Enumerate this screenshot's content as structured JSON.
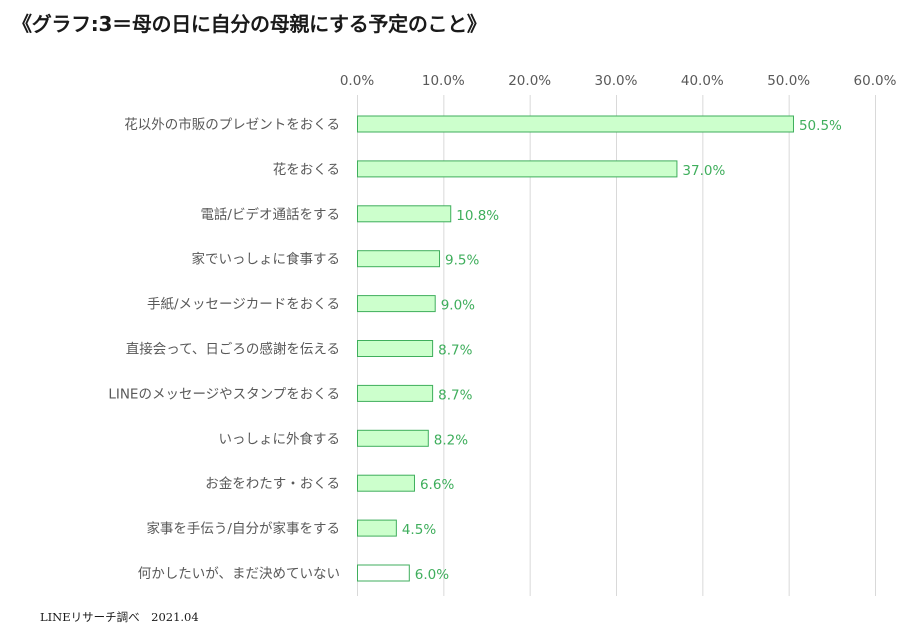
{
  "title": "《グラフ:3＝母の日に自分の母親にする予定のこと》",
  "source": "LINEリサーチ調べ　2021.04",
  "colors": {
    "bar_fill": "#ccffcc",
    "bar_stroke": "#3fae5c",
    "bar_fill_undecided": "#ffffff",
    "label_green": "#3fae5c",
    "grid": "#d9d9d9",
    "text": "#595959"
  },
  "chart_data": {
    "type": "bar",
    "orientation": "horizontal",
    "title": "《グラフ:3＝母の日に自分の母親にする予定のこと》",
    "xlim": [
      0,
      60
    ],
    "xticks": [
      "0.0%",
      "10.0%",
      "20.0%",
      "30.0%",
      "40.0%",
      "50.0%",
      "60.0%"
    ],
    "tick_values": [
      0,
      10,
      20,
      30,
      40,
      50,
      60
    ],
    "axis_position": "top",
    "grid": true,
    "categories": [
      "花以外の市販のプレゼントをおくる",
      "花をおくる",
      "電話/ビデオ通話をする",
      "家でいっしょに食事する",
      "手紙/メッセージカードをおくる",
      "直接会って、日ごろの感謝を伝える",
      "LINEのメッセージやスタンプをおくる",
      "いっしょに外食する",
      "お金をわたす・おくる",
      "家事を手伝う/自分が家事をする",
      "何かしたいが、まだ決めていない"
    ],
    "values": [
      50.5,
      37.0,
      10.8,
      9.5,
      9.0,
      8.7,
      8.7,
      8.2,
      6.6,
      4.5,
      6.0
    ],
    "value_labels": [
      "50.5%",
      "37.0%",
      "10.8%",
      "9.5%",
      "9.0%",
      "8.7%",
      "8.7%",
      "8.2%",
      "6.6%",
      "4.5%",
      "6.0%"
    ]
  }
}
